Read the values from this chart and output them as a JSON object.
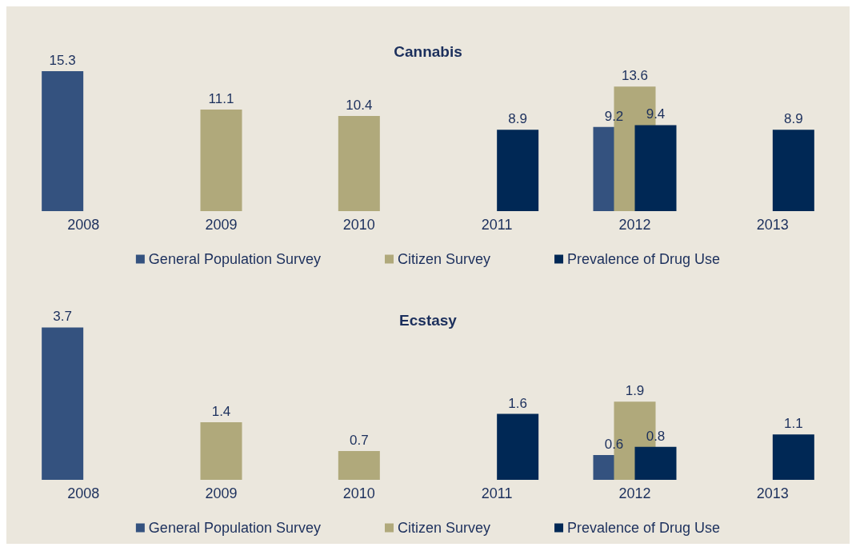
{
  "chart_data": [
    {
      "type": "bar",
      "title": "Cannabis",
      "categories": [
        "2008",
        "2009",
        "2010",
        "2011",
        "2012",
        "2013"
      ],
      "series": [
        {
          "name": "General Population Survey",
          "color": "#34527f",
          "values": [
            15.3,
            null,
            null,
            null,
            9.2,
            null
          ]
        },
        {
          "name": "Citizen Survey",
          "color": "#b0a97b",
          "values": [
            null,
            11.1,
            10.4,
            null,
            13.6,
            null
          ]
        },
        {
          "name": "Prevalence of Drug Use",
          "color": "#002855",
          "values": [
            null,
            null,
            null,
            8.9,
            9.4,
            8.9
          ]
        }
      ],
      "data_labels": true,
      "legend": "bottom",
      "grid": false
    },
    {
      "type": "bar",
      "title": "Ecstasy",
      "categories": [
        "2008",
        "2009",
        "2010",
        "2011",
        "2012",
        "2013"
      ],
      "series": [
        {
          "name": "General Population Survey",
          "color": "#34527f",
          "values": [
            3.7,
            null,
            null,
            null,
            0.6,
            null
          ]
        },
        {
          "name": "Citizen Survey",
          "color": "#b0a97b",
          "values": [
            null,
            1.4,
            0.7,
            null,
            1.9,
            null
          ]
        },
        {
          "name": "Prevalence of Drug Use",
          "color": "#002855",
          "values": [
            null,
            null,
            null,
            1.6,
            0.8,
            1.1
          ]
        }
      ],
      "data_labels": true,
      "legend": "bottom",
      "grid": false
    }
  ]
}
